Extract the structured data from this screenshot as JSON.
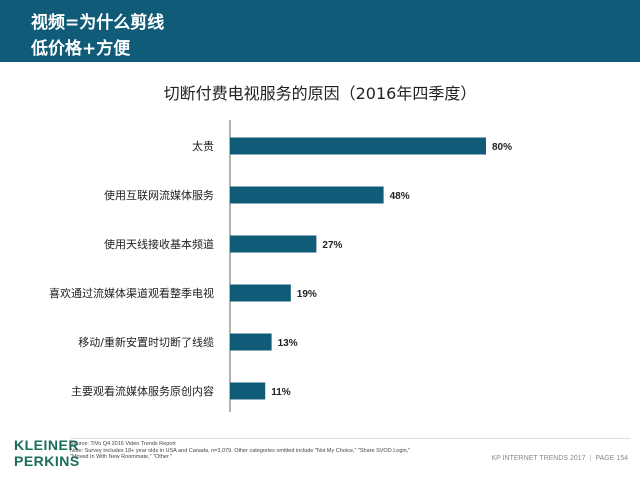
{
  "header": {
    "line1": "视频=为什么剪线",
    "line2": "低价格+方便"
  },
  "chart_data": {
    "type": "bar",
    "orientation": "horizontal",
    "title": "切断付费电视服务的原因（2016年四季度）",
    "categories": [
      "太贵",
      "使用互联网流媒体服务",
      "使用天线接收基本频道",
      "喜欢通过流媒体渠道观看整季电视",
      "移动/重新安置时切断了线缆",
      "主要观看流媒体服务原创内容"
    ],
    "values": [
      80,
      48,
      27,
      19,
      13,
      11
    ],
    "value_labels": [
      "80%",
      "48%",
      "27%",
      "19%",
      "13%",
      "11%"
    ],
    "xlim": [
      0,
      100
    ],
    "bar_color": "#0f5b78",
    "grid": false,
    "legend": "none"
  },
  "footer": {
    "logo_line1": "KLEINER",
    "logo_line2": "PERKINS",
    "note_line1": "Source: TiVo Q4 2016 Video Trends Report",
    "note_line2": "Note: Survey includes 18+ year olds in USA and Canada, n=3,079. Other categories omitted include \"Not My Choice,\" \"Share SVOD Login,\"",
    "note_line3": "\"Moved In With New Roommate,\" \"Other.\"",
    "right_text": "KP INTERNET TRENDS 2017",
    "separator": "|",
    "page_label": "PAGE 154"
  }
}
